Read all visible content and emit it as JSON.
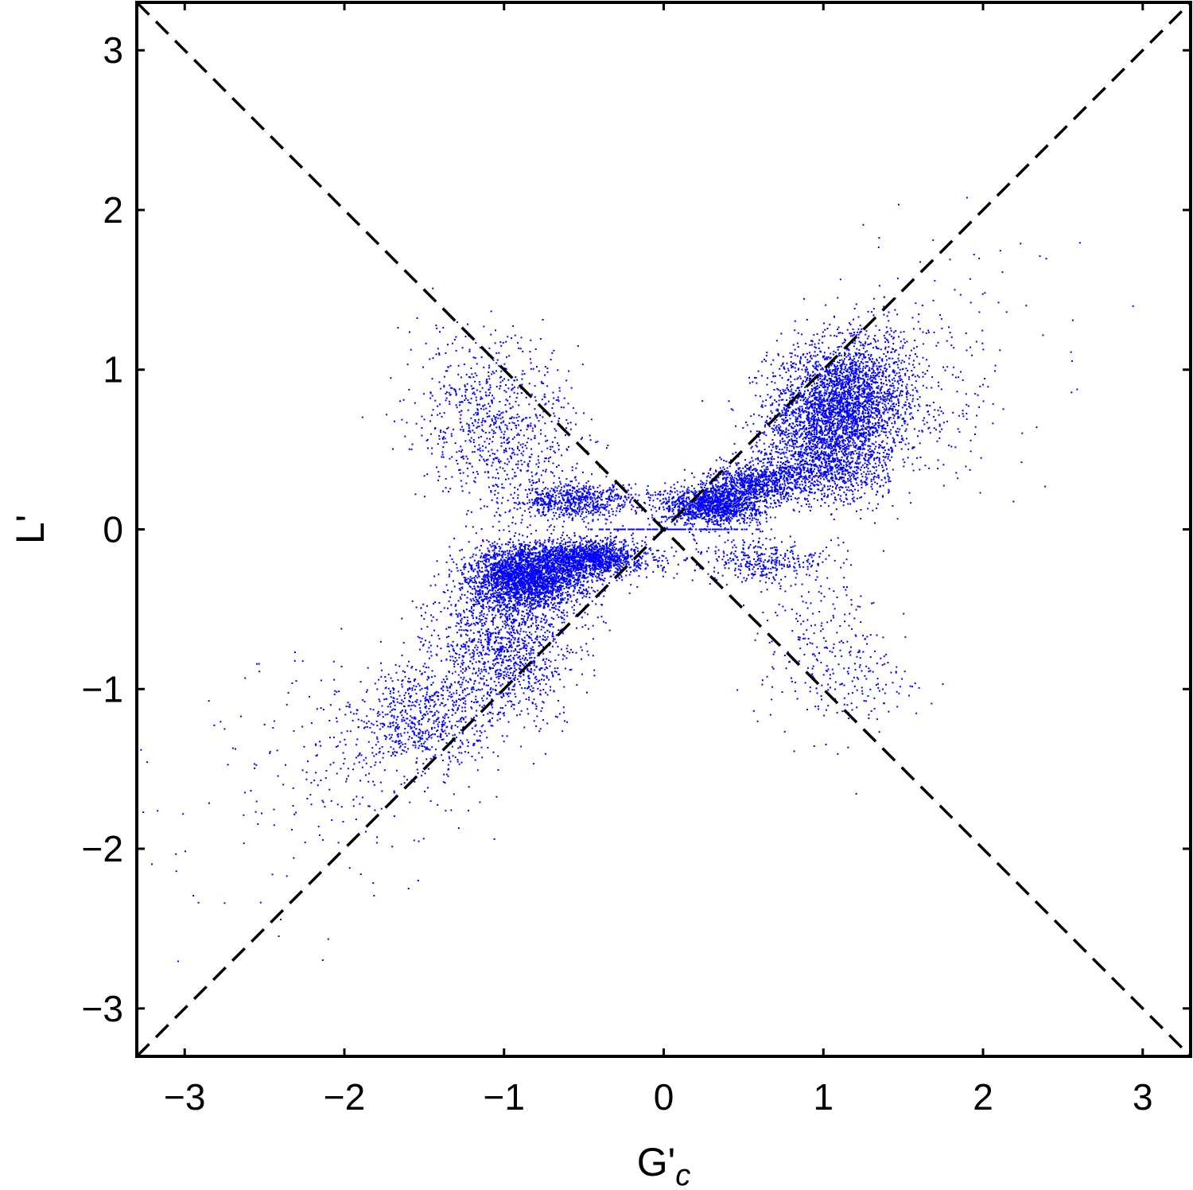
{
  "chart_data": {
    "type": "scatter",
    "title": "",
    "xlabel": "G'",
    "xlabel_subscript": "c",
    "ylabel": "L'",
    "xlim": [
      -3.3,
      3.3
    ],
    "ylim": [
      -3.3,
      3.3
    ],
    "xticks": [
      -3,
      -2,
      -1,
      0,
      1,
      2,
      3
    ],
    "yticks": [
      -3,
      -2,
      -1,
      0,
      1,
      2,
      3
    ],
    "xtick_labels": [
      "−3",
      "−2",
      "−1",
      "0",
      "1",
      "2",
      "3"
    ],
    "ytick_labels": [
      "−3",
      "−2",
      "−1",
      "0",
      "1",
      "2",
      "3"
    ],
    "grid": false,
    "legend": "none",
    "reference_lines": [
      {
        "style": "dashed",
        "color": "#000000",
        "x": [
          -3.3,
          3.3
        ],
        "y": [
          -3.3,
          3.3
        ]
      },
      {
        "style": "dashed",
        "color": "#000000",
        "x": [
          -3.3,
          3.3
        ],
        "y": [
          3.3,
          -3.3
        ]
      }
    ],
    "series": [
      {
        "color": "#0000ff",
        "marker": "dot",
        "clusters": [
          {
            "cx": 1.05,
            "cy": 0.7,
            "sx": 0.2,
            "sy": 0.22,
            "n": 2600
          },
          {
            "cx": 1.25,
            "cy": 0.85,
            "sx": 0.18,
            "sy": 0.2,
            "n": 900
          },
          {
            "cx": 0.9,
            "cy": 0.35,
            "sx": 0.25,
            "sy": 0.09,
            "n": 700
          },
          {
            "cx": 0.3,
            "cy": 0.15,
            "sx": 0.16,
            "sy": 0.06,
            "n": 1300
          },
          {
            "cx": 0.55,
            "cy": 0.28,
            "sx": 0.15,
            "sy": 0.06,
            "n": 600
          },
          {
            "cx": 1.6,
            "cy": 0.9,
            "sx": 0.3,
            "sy": 0.3,
            "n": 250
          },
          {
            "cx": 2.0,
            "cy": 1.5,
            "sx": 0.3,
            "sy": 0.3,
            "n": 30
          },
          {
            "cx": -0.85,
            "cy": -0.3,
            "sx": 0.18,
            "sy": 0.1,
            "n": 2600
          },
          {
            "cx": -0.45,
            "cy": -0.18,
            "sx": 0.18,
            "sy": 0.06,
            "n": 1400
          },
          {
            "cx": -1.0,
            "cy": -0.72,
            "sx": 0.22,
            "sy": 0.22,
            "n": 1300
          },
          {
            "cx": -1.5,
            "cy": -1.2,
            "sx": 0.22,
            "sy": 0.18,
            "n": 700
          },
          {
            "cx": -2.0,
            "cy": -1.5,
            "sx": 0.35,
            "sy": 0.35,
            "n": 200
          },
          {
            "cx": -2.7,
            "cy": -2.1,
            "sx": 0.4,
            "sy": 0.4,
            "n": 30
          },
          {
            "cx": -0.55,
            "cy": 0.18,
            "sx": 0.2,
            "sy": 0.06,
            "n": 700
          },
          {
            "cx": -1.0,
            "cy": 0.6,
            "sx": 0.25,
            "sy": 0.25,
            "n": 700
          },
          {
            "cx": -1.2,
            "cy": 0.9,
            "sx": 0.25,
            "sy": 0.2,
            "n": 150
          },
          {
            "cx": 0.6,
            "cy": -0.2,
            "sx": 0.2,
            "sy": 0.07,
            "n": 350
          },
          {
            "cx": 1.0,
            "cy": -0.75,
            "sx": 0.2,
            "sy": 0.25,
            "n": 250
          },
          {
            "cx": 1.35,
            "cy": -0.95,
            "sx": 0.15,
            "sy": 0.12,
            "n": 60
          },
          {
            "cx": 0.0,
            "cy": 0.0,
            "sx": 0.25,
            "sy": 0.0,
            "n": 200
          }
        ]
      }
    ]
  }
}
